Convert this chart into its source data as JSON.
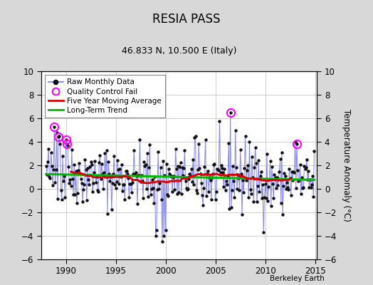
{
  "title": "RESIA PASS",
  "subtitle": "46.833 N, 10.500 E (Italy)",
  "ylabel": "Temperature Anomaly (°C)",
  "xlabel_credit": "Berkeley Earth",
  "ylim": [
    -6,
    10
  ],
  "xlim": [
    1987.5,
    2015.2
  ],
  "yticks": [
    -6,
    -4,
    -2,
    0,
    2,
    4,
    6,
    8,
    10
  ],
  "xticks": [
    1990,
    1995,
    2000,
    2005,
    2010,
    2015
  ],
  "bg_color": "#d8d8d8",
  "plot_bg_color": "#ffffff",
  "grid_color": "#c8c8c8",
  "raw_line_color": "#7777ee",
  "raw_marker_color": "#111111",
  "moving_avg_color": "#dd0000",
  "trend_color": "#00bb00",
  "qc_color": "#ff00ff",
  "start_year": 1988,
  "n_months": 324,
  "seed": 42
}
